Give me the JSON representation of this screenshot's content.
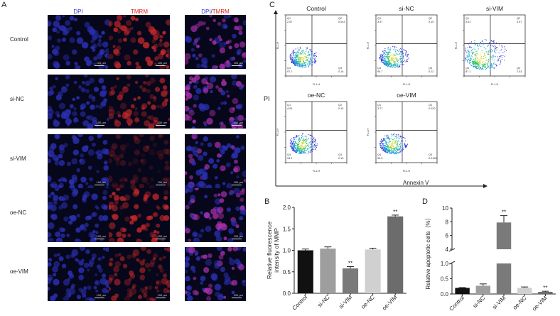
{
  "panelA": {
    "letter": "A",
    "columns": [
      {
        "parts": [
          "DPI"
        ],
        "colors": [
          "#3340d8"
        ]
      },
      {
        "parts": [
          "TMRM"
        ],
        "colors": [
          "#e02020"
        ]
      },
      {
        "parts": [
          "DPI",
          "/",
          "TMRM"
        ],
        "colors": [
          "#3340d8",
          "#222222",
          "#e02020"
        ]
      }
    ],
    "rows": [
      "Control",
      "si-NC",
      "si-VIM",
      "oe-NC",
      "oe-VIM"
    ],
    "scalebar_label": "100 μm",
    "palette": {
      "dpi": "#2a2fb0",
      "tmrm": "#c8282a",
      "merge": "#a62fa8",
      "background": "#06071a"
    }
  },
  "panelC": {
    "letter": "C",
    "y_axis_label": "PI",
    "x_axis_label": "Annexin V",
    "axis_text": "FL1-H",
    "plots": [
      {
        "title": "Control",
        "q1": "2.57",
        "q2": "0.043",
        "q3": "0.16",
        "q4": "97.2"
      },
      {
        "title": "si-NC",
        "q1": "3.97",
        "q2": "0.15",
        "q3": "0.22",
        "q4": "95.7"
      },
      {
        "title": "si-VIM",
        "q1": "5.41",
        "q2": "4.97",
        "q3": "2.53",
        "q4": "87.1"
      },
      {
        "title": "oe-NC",
        "q1": "4.05",
        "q2": "0.15",
        "q3": "0.13",
        "q4": "94.9"
      },
      {
        "title": "oe-VIM",
        "q1": "3.77",
        "q2": "0.020",
        "q3": "0.0160",
        "q4": "96.3"
      }
    ],
    "quadrant_labels": [
      "Q1",
      "Q2",
      "Q3",
      "Q4"
    ]
  },
  "chart_data": [
    {
      "type": "bar",
      "panel": "B",
      "ylabel_lines": [
        "Relative fluorescence",
        "intensity of MMP"
      ],
      "xlabel": "",
      "categories": [
        "Control",
        "si-NC",
        "si-VIM",
        "oe-NC",
        "oe-VIM"
      ],
      "values": [
        1.0,
        1.04,
        0.58,
        1.02,
        1.79
      ],
      "errors": [
        0.03,
        0.04,
        0.04,
        0.03,
        0.03
      ],
      "significance": [
        "",
        "",
        "**",
        "",
        "**"
      ],
      "colors": [
        "#111111",
        "#9e9e9e",
        "#7a7a7a",
        "#d0d0d0",
        "#6c6c6c"
      ],
      "ylim": [
        0,
        2.0
      ],
      "yticks": [
        "0.0",
        "0.5",
        "1.0",
        "1.5",
        "2.0"
      ],
      "ytick_values": [
        0,
        0.5,
        1.0,
        1.5,
        2.0
      ]
    },
    {
      "type": "bar",
      "panel": "D",
      "ylabel": "Relative apoptotic cells（%）",
      "xlabel": "",
      "categories": [
        "Control",
        "si-NC",
        "si-VIM",
        "oe-NC",
        "oe-VIM"
      ],
      "values": [
        0.2,
        0.27,
        7.9,
        0.2,
        0.07
      ],
      "errors": [
        0.01,
        0.06,
        1.0,
        0.03,
        0.02
      ],
      "significance": [
        "",
        "",
        "**",
        "",
        "**"
      ],
      "colors": [
        "#111111",
        "#9e9e9e",
        "#7a7a7a",
        "#d0d0d0",
        "#6c6c6c"
      ],
      "axis_break": {
        "lower": [
          0,
          1
        ],
        "upper": [
          4,
          10
        ]
      },
      "yticks": [
        "0.0",
        "0.5",
        "1.0",
        "4",
        "6",
        "8",
        "10"
      ],
      "ytick_values": [
        0,
        0.5,
        1.0,
        4,
        6,
        8,
        10
      ]
    }
  ]
}
